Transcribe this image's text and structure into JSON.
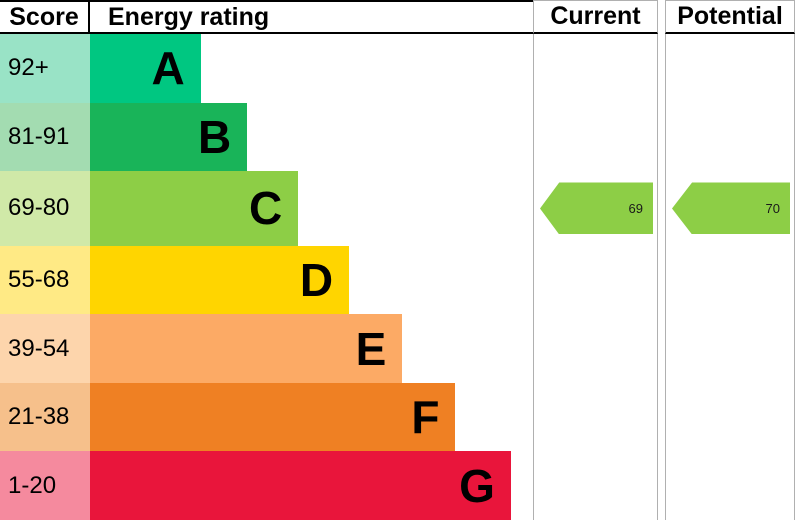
{
  "header": {
    "score": "Score",
    "energy_rating": "Energy rating",
    "current": "Current",
    "potential": "Potential"
  },
  "chart_data": {
    "type": "bar",
    "title": "Energy rating",
    "categories": [
      "A",
      "B",
      "C",
      "D",
      "E",
      "F",
      "G"
    ],
    "bands": [
      {
        "letter": "A",
        "score_range": "92+",
        "color": "#00c781",
        "tint_color": "#99e3c6",
        "bar_width_pct": 25
      },
      {
        "letter": "B",
        "score_range": "81-91",
        "color": "#19b459",
        "tint_color": "#a3dcb1",
        "bar_width_pct": 35.5
      },
      {
        "letter": "C",
        "score_range": "69-80",
        "color": "#8dce46",
        "tint_color": "#d0e9a8",
        "bar_width_pct": 47
      },
      {
        "letter": "D",
        "score_range": "55-68",
        "color": "#ffd500",
        "tint_color": "#ffea85",
        "bar_width_pct": 58.5
      },
      {
        "letter": "E",
        "score_range": "39-54",
        "color": "#fcaa65",
        "tint_color": "#fdd5ac",
        "bar_width_pct": 70.5
      },
      {
        "letter": "F",
        "score_range": "21-38",
        "color": "#ef8023",
        "tint_color": "#f6c08b",
        "bar_width_pct": 82.5
      },
      {
        "letter": "G",
        "score_range": "1-20",
        "color": "#e9153b",
        "tint_color": "#f58a9e",
        "bar_width_pct": 95
      }
    ],
    "current": {
      "value": "69",
      "band": "C",
      "color": "#8dce46"
    },
    "potential": {
      "value": "70",
      "band": "C",
      "color": "#8dce46"
    }
  }
}
